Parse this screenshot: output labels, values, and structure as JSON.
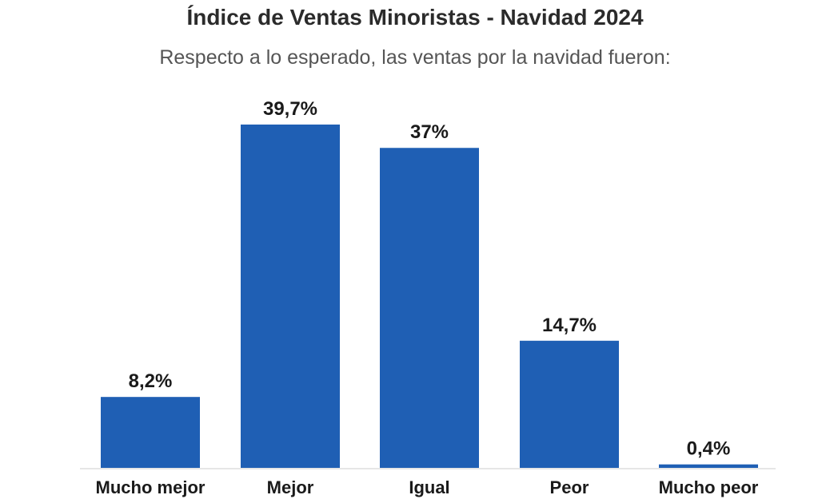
{
  "chart_data": {
    "type": "bar",
    "title": "Índice de Ventas Minoristas - Navidad 2024",
    "subtitle": "Respecto a lo esperado, las ventas por la navidad fueron:",
    "categories": [
      "Mucho mejor",
      "Mejor",
      "Igual",
      "Peor",
      "Mucho peor"
    ],
    "values": [
      8.2,
      39.7,
      37,
      14.7,
      0.4
    ],
    "value_labels": [
      "8,2%",
      "39,7%",
      "37%",
      "14,7%",
      "0,4%"
    ],
    "unit": "%",
    "ylim": [
      0,
      39.7
    ],
    "grid": false,
    "bar_color": "#1f5fb4",
    "axis_color": "#cccccc"
  }
}
